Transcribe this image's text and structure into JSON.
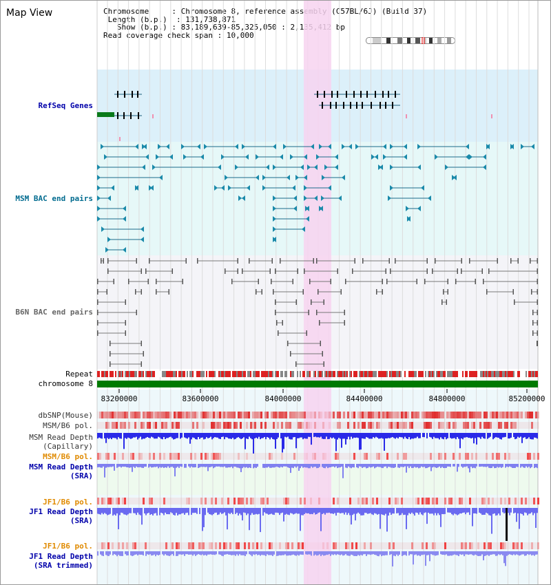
{
  "app": {
    "title": "Map View"
  },
  "info": {
    "chromosome_key": "Chromosome",
    "chromosome_val": "Chromosome 8, reference assembly (C57BL/6J) (Build 37)",
    "length_key": "Length (b.p.)",
    "length_val": "131,738,871",
    "show_key": "Show (b.p.)",
    "show_val": "83,189,639-85,325,050 : 2,135,412 bp",
    "coverage_key": "Read coverage check span",
    "coverage_val": "10,000"
  },
  "tracks": {
    "refseq": "RefSeq Genes",
    "msm_bac": "MSM BAC end pairs",
    "b6n_bac": "B6N BAC end pairs",
    "repeat": "Repeat",
    "chrom": "chromosome 8",
    "dbsnp": "dbSNP(Mouse)",
    "msm_b6_pol_1": "MSM/B6 pol.",
    "msm_depth_cap_1": "MSM Read Depth",
    "msm_depth_cap_2": "(Capillary)",
    "msm_b6_pol_2": "MSM/B6 pol.",
    "msm_depth_sra_1": "MSM Read Depth",
    "msm_depth_sra_2": "(SRA)",
    "jf1_b6_pol_1": "JF1/B6 pol.",
    "jf1_depth_sra_1": "JF1 Read Depth",
    "jf1_depth_sra_2": "(SRA)",
    "jf1_b6_pol_2": "JF1/B6 pol.",
    "jf1_depth_trim_1": "JF1 Read Depth",
    "jf1_depth_trim_2": "(SRA trimmed)"
  },
  "axis": {
    "ticks": [
      "83200000",
      "83600000",
      "84000000",
      "84400000",
      "84800000",
      "85200000"
    ]
  },
  "colors": {
    "refseq_label": "#0000aa",
    "msm_label": "#006b8f",
    "b6n_label": "#666666",
    "orange_label": "#e08a00",
    "blue_label": "#0000aa",
    "highlight": "#f7d4f0",
    "refseq_bg": "#dcf0fa",
    "msm_bg": "#e6f8f8",
    "b6n_bg": "#f4f4f8",
    "chrom_bar": "#007a00"
  }
}
